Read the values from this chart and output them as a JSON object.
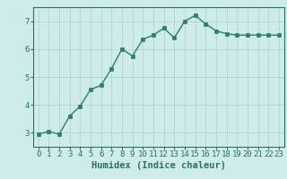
{
  "x": [
    0,
    1,
    2,
    3,
    4,
    5,
    6,
    7,
    8,
    9,
    10,
    11,
    12,
    13,
    14,
    15,
    16,
    17,
    18,
    19,
    20,
    21,
    22,
    23
  ],
  "y": [
    2.95,
    3.05,
    2.95,
    3.6,
    3.95,
    4.55,
    4.7,
    5.3,
    6.0,
    5.75,
    6.35,
    6.5,
    6.75,
    6.4,
    7.0,
    7.2,
    6.9,
    6.65,
    6.55,
    6.5,
    6.5,
    6.5,
    6.5,
    6.5
  ],
  "line_color": "#2e7d6e",
  "marker": "s",
  "markersize": 2.5,
  "linewidth": 1.0,
  "xlabel": "Humidex (Indice chaleur)",
  "xlim": [
    -0.5,
    23.5
  ],
  "ylim": [
    2.5,
    7.5
  ],
  "yticks": [
    3,
    4,
    5,
    6,
    7
  ],
  "xticks": [
    0,
    1,
    2,
    3,
    4,
    5,
    6,
    7,
    8,
    9,
    10,
    11,
    12,
    13,
    14,
    15,
    16,
    17,
    18,
    19,
    20,
    21,
    22,
    23
  ],
  "bg_color": "#ceecea",
  "grid_color": "#b8d4d0",
  "axes_color": "#2e6e68",
  "xlabel_fontsize": 7.5,
  "tick_fontsize": 6.5
}
